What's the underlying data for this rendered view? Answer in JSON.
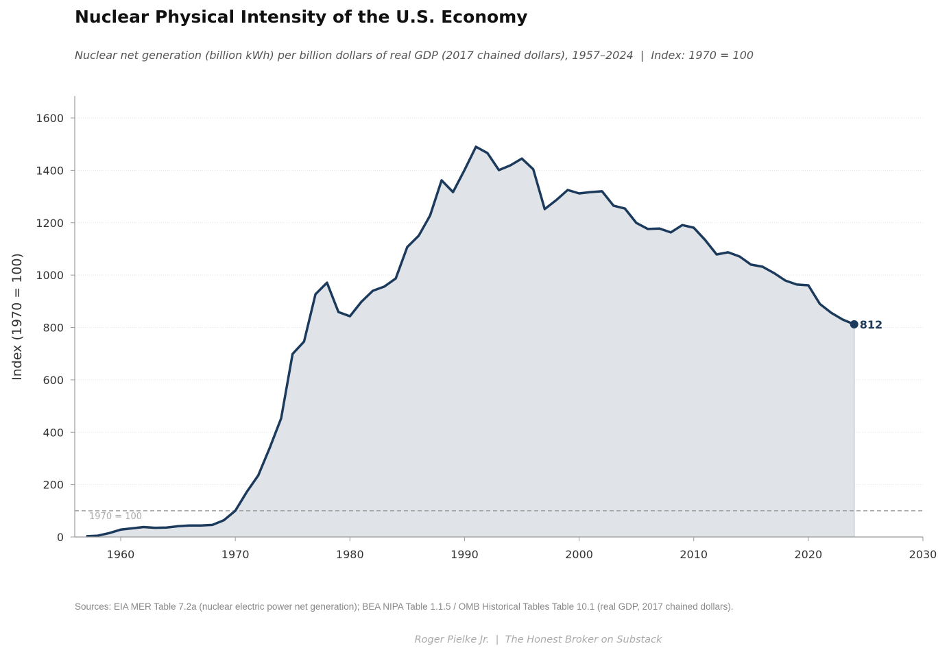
{
  "chart_data": {
    "type": "area",
    "title": "Nuclear Physical Intensity of the U.S. Economy",
    "subtitle": "Nuclear net generation (billion kWh) per billion dollars of real GDP (2017 chained dollars), 1957–2024  |  Index: 1970 = 100",
    "xlabel": "",
    "ylabel": "Index (1970 = 100)",
    "xlim": [
      1956,
      2030
    ],
    "ylim": [
      0,
      1680
    ],
    "xticks": [
      "1960",
      "1970",
      "1980",
      "1990",
      "2000",
      "2010",
      "2020",
      "2030"
    ],
    "yticks": [
      "0",
      "200",
      "400",
      "600",
      "800",
      "1000",
      "1200",
      "1400",
      "1600"
    ],
    "grid": true,
    "reference_line": {
      "value": 100,
      "label": "1970 = 100"
    },
    "end_label": "812",
    "x": [
      1957,
      1958,
      1959,
      1960,
      1961,
      1962,
      1963,
      1964,
      1965,
      1966,
      1967,
      1968,
      1969,
      1970,
      1971,
      1972,
      1973,
      1974,
      1975,
      1976,
      1977,
      1978,
      1979,
      1980,
      1981,
      1982,
      1983,
      1984,
      1985,
      1986,
      1987,
      1988,
      1989,
      1990,
      1991,
      1992,
      1993,
      1994,
      1995,
      1996,
      1997,
      1998,
      1999,
      2000,
      2001,
      2002,
      2003,
      2004,
      2005,
      2006,
      2007,
      2008,
      2009,
      2010,
      2011,
      2012,
      2013,
      2014,
      2015,
      2016,
      2017,
      2018,
      2019,
      2020,
      2021,
      2022,
      2023,
      2024
    ],
    "values": [
      3,
      5,
      15,
      28,
      33,
      38,
      35,
      36,
      41,
      44,
      44,
      46,
      64,
      100,
      172,
      235,
      340,
      453,
      699,
      746,
      927,
      971,
      859,
      843,
      898,
      940,
      956,
      987,
      1107,
      1150,
      1228,
      1362,
      1317,
      1401,
      1490,
      1466,
      1401,
      1419,
      1445,
      1404,
      1252,
      1286,
      1325,
      1312,
      1317,
      1320,
      1265,
      1254,
      1199,
      1176,
      1178,
      1163,
      1191,
      1181,
      1134,
      1079,
      1087,
      1071,
      1040,
      1032,
      1008,
      979,
      964,
      961,
      890,
      856,
      830,
      812
    ],
    "colors": {
      "line": "#1c3a5c",
      "fill": "#e0e4e8"
    }
  },
  "footer": {
    "sources": "Sources: EIA MER Table 7.2a (nuclear electric power net generation); BEA NIPA Table 1.1.5 / OMB Historical Tables Table 10.1 (real GDP, 2017 chained dollars).",
    "credit": "Roger Pielke Jr.  |  The Honest Broker on Substack"
  }
}
